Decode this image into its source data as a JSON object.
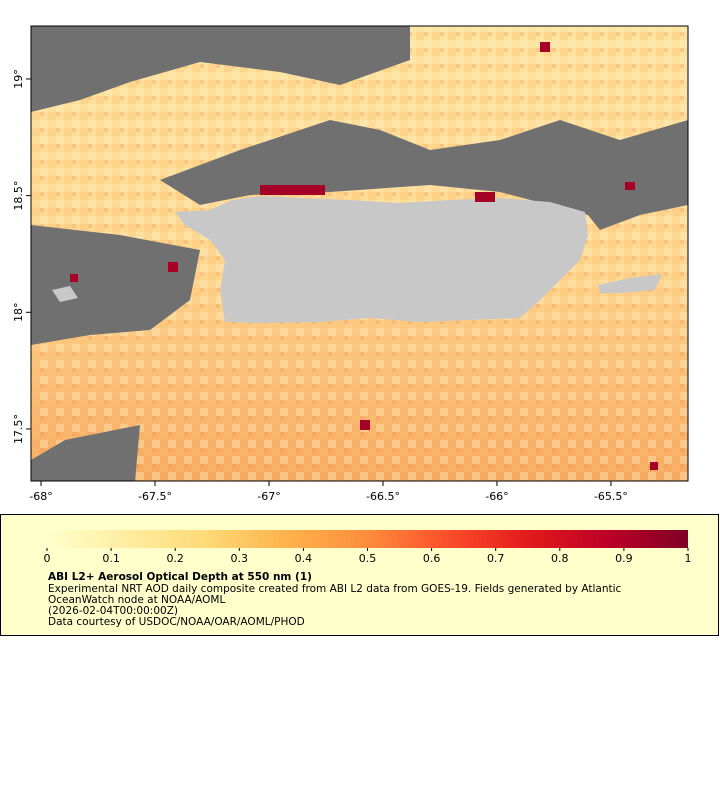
{
  "map": {
    "xlim": [
      -68.044,
      -65.162
    ],
    "ylim": [
      17.277,
      19.227
    ],
    "xticks": [
      {
        "value": -68,
        "label": "-68°"
      },
      {
        "value": -67.5,
        "label": "-67.5°"
      },
      {
        "value": -67,
        "label": "-67°"
      },
      {
        "value": -66.5,
        "label": "-66.5°"
      },
      {
        "value": -66,
        "label": "-66°"
      },
      {
        "value": -65.5,
        "label": "-65.5°"
      }
    ],
    "yticks": [
      {
        "value": 17.5,
        "label": "17.5°"
      },
      {
        "value": 18,
        "label": "18°"
      },
      {
        "value": 18.5,
        "label": "18.5°"
      },
      {
        "value": 19,
        "label": "19°"
      }
    ]
  },
  "colorbar": {
    "lim": [
      0,
      1
    ],
    "ticks": [
      0,
      0.1,
      0.2,
      0.3,
      0.4,
      0.5,
      0.6,
      0.7,
      0.8,
      0.9,
      1
    ],
    "colors": [
      "#ffffcc",
      "#ffeda0",
      "#fed976",
      "#feb24c",
      "#fd8d3c",
      "#fc4e2a",
      "#e31a1c",
      "#bd0026",
      "#800026"
    ]
  },
  "caption": {
    "title": "ABI L2+ Aerosol Optical Depth at 550 nm (1)",
    "lines": [
      "Experimental NRT AOD daily composite created from ABI L2 data from GOES-19. Fields generated by Atlantic",
      "OceanWatch node at NOAA/AOML",
      "(2026-02-04T00:00:00Z)",
      "Data courtesy of USDOC/NOAA/OAR/AOML/PHOD"
    ]
  }
}
